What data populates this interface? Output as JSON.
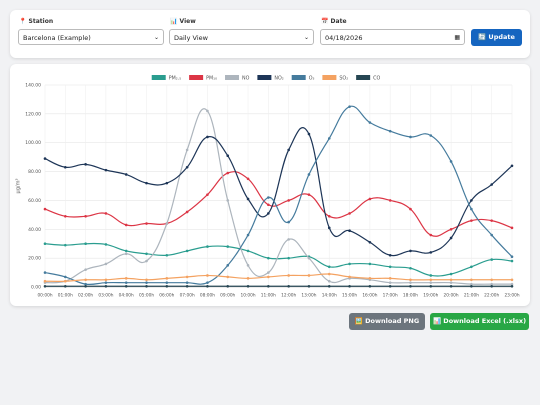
{
  "controls": {
    "station": {
      "label": "📍 Station",
      "value": "Barcelona (Example)"
    },
    "view": {
      "label": "📊 View",
      "value": "Daily View"
    },
    "date": {
      "label": "📅 Date",
      "value": "04/18/2026"
    },
    "update": "🔄 Update"
  },
  "chart_data": {
    "type": "line",
    "y_label": "µg/m³",
    "categories": [
      "00:00h",
      "01:00h",
      "02:00h",
      "03:00h",
      "04:00h",
      "05:00h",
      "06:00h",
      "07:00h",
      "08:00h",
      "09:00h",
      "10:00h",
      "11:00h",
      "12:00h",
      "13:00h",
      "14:00h",
      "15:00h",
      "16:00h",
      "17:00h",
      "18:00h",
      "19:00h",
      "20:00h",
      "21:00h",
      "22:00h",
      "23:00h"
    ],
    "ylim": [
      0,
      140
    ],
    "yticks": [
      {
        "value": 0,
        "label": "0.00"
      },
      {
        "value": 20,
        "label": "20.00"
      },
      {
        "value": 40,
        "label": "40.00"
      },
      {
        "value": 60,
        "label": "60.00"
      },
      {
        "value": 80,
        "label": "80.00"
      },
      {
        "value": 100,
        "label": "100.00"
      },
      {
        "value": 120,
        "label": "120.00"
      },
      {
        "value": 140,
        "label": "140.00"
      }
    ],
    "grid": true,
    "legend": "top",
    "series": [
      {
        "name": "PM₂.₅",
        "color": "#2a9d8f",
        "values": [
          30,
          29,
          30,
          29.5,
          25,
          23,
          22,
          25,
          28,
          28,
          25,
          20,
          20,
          21,
          14,
          16,
          16,
          14,
          13,
          8,
          9,
          14,
          19,
          18
        ]
      },
      {
        "name": "PM₁₀",
        "color": "#dc3545",
        "values": [
          54,
          49,
          49,
          51,
          43,
          44,
          44,
          52,
          64,
          79,
          75,
          57,
          60,
          64,
          49,
          51,
          61,
          60,
          54,
          36,
          40,
          46,
          46,
          41
        ]
      },
      {
        "name": "NO",
        "color": "#adb5bd",
        "values": [
          3,
          4,
          12,
          16,
          23,
          18,
          44,
          95,
          122,
          60,
          15,
          10,
          33,
          20,
          4,
          6,
          5,
          3,
          3,
          3,
          3,
          2,
          2,
          2
        ]
      },
      {
        "name": "NO₂",
        "color": "#1d3557",
        "values": [
          89,
          83,
          85,
          81,
          78,
          72,
          72,
          83,
          104,
          91,
          61,
          51,
          95,
          106,
          41,
          39,
          31,
          22,
          25,
          24,
          34,
          60,
          71,
          84
        ]
      },
      {
        "name": "O₃",
        "color": "#457b9d",
        "values": [
          10,
          7,
          2,
          3,
          3,
          3,
          3,
          3,
          3,
          15,
          36,
          62,
          45,
          78,
          103,
          125,
          114,
          108,
          104,
          105,
          87,
          54,
          36,
          21
        ]
      },
      {
        "name": "SO₂",
        "color": "#f4a261",
        "values": [
          4,
          4,
          5,
          5,
          6,
          5,
          6,
          7,
          8,
          7,
          6,
          7,
          8,
          8,
          9,
          7,
          6,
          6,
          5,
          5,
          5,
          5,
          5,
          5
        ]
      },
      {
        "name": "CO",
        "color": "#264653",
        "values": [
          0.5,
          0.5,
          0.5,
          0.5,
          0.5,
          0.5,
          0.5,
          0.5,
          0.5,
          0.5,
          0.5,
          0.5,
          0.5,
          0.5,
          0.5,
          0.5,
          0.5,
          0.5,
          0.5,
          0.5,
          0.5,
          0.5,
          0.5,
          0.5
        ]
      }
    ]
  },
  "buttons": {
    "png": "🖼️ Download PNG",
    "excel": "📊 Download Excel (.xlsx)"
  }
}
